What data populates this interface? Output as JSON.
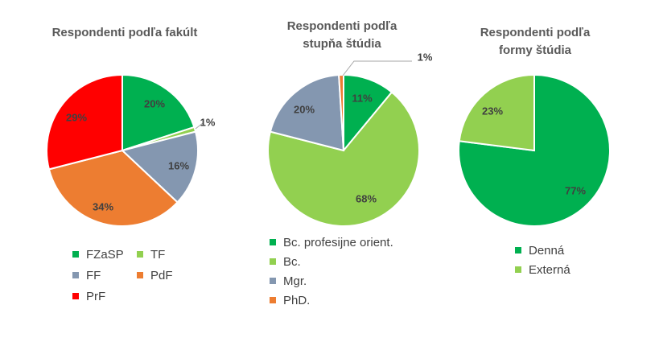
{
  "chart_data": [
    {
      "type": "pie",
      "title": "Respondenti podľa fakúlt",
      "categories": [
        "FZaSP",
        "TF",
        "FF",
        "PdF",
        "PrF"
      ],
      "values": [
        20,
        1,
        16,
        34,
        29
      ],
      "labels": [
        "20%",
        "1%",
        "16%",
        "34%",
        "29%"
      ],
      "colors": [
        "#00B050",
        "#92D050",
        "#8497B0",
        "#ED7D31",
        "#FF0000"
      ],
      "legend_position": "bottom"
    },
    {
      "type": "pie",
      "title": "Respondenti podľa stupňa štúdia",
      "categories": [
        "Bc. profesijne orient.",
        "Bc.",
        "Mgr.",
        "PhD."
      ],
      "values": [
        11,
        68,
        20,
        1
      ],
      "labels": [
        "11%",
        "68%",
        "20%",
        "1%"
      ],
      "colors": [
        "#00B050",
        "#92D050",
        "#8497B0",
        "#ED7D31"
      ],
      "legend_position": "bottom"
    },
    {
      "type": "pie",
      "title": "Respondenti podľa formy štúdia",
      "categories": [
        "Denná",
        "Externá"
      ],
      "values": [
        77,
        23
      ],
      "labels": [
        "77%",
        "23%"
      ],
      "colors": [
        "#00B050",
        "#92D050"
      ],
      "legend_position": "bottom"
    }
  ]
}
